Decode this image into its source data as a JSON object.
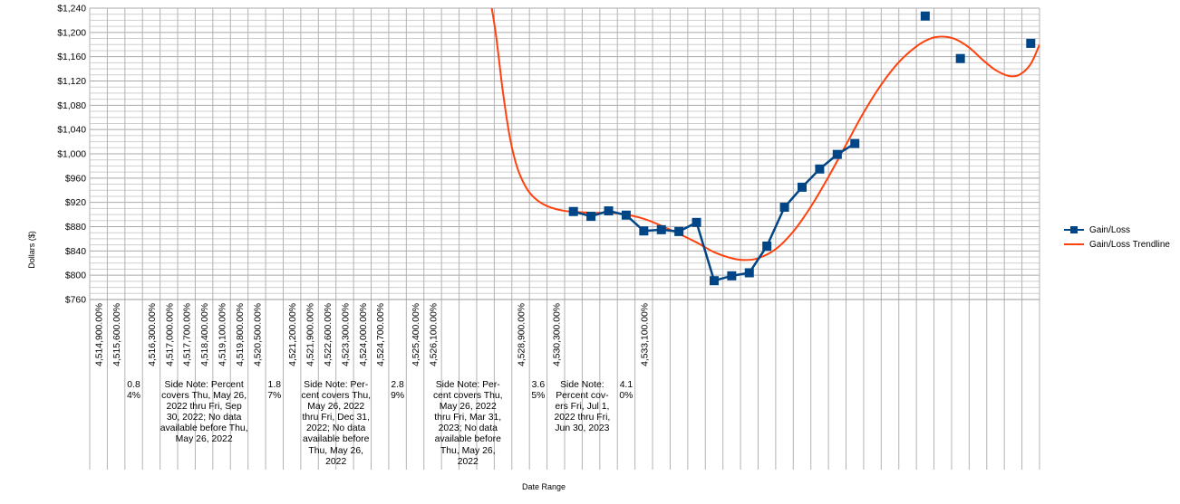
{
  "chart_data": {
    "type": "line",
    "ylabel": "Dollars ($)",
    "xlabel": "Date Range",
    "ylim": [
      760,
      1240
    ],
    "y_tick_step": 40,
    "grid": true,
    "legend_position": "right",
    "categories": [
      "4,514,900.00%",
      "4,515,600.00%",
      "0.84%",
      "4,516,300.00%",
      "4,517,000.00%",
      "4,517,700.00%",
      "4,518,400.00%",
      "4,519,100.00%",
      "4,519,800.00%",
      "4,520,500.00%",
      "1.87%",
      "4,521,200.00%",
      "4,521,900.00%",
      "4,522,600.00%",
      "4,523,300.00%",
      "4,524,000.00%",
      "4,524,700.00%",
      "2.89%",
      "4,525,400.00%",
      "4,526,100.00%",
      "",
      "",
      "",
      "",
      "4,528,900.00%",
      "3.65%",
      "4,530,300.00%",
      "",
      "",
      "",
      "4.10%",
      "4,533,100.00%",
      "",
      "",
      "",
      "",
      "",
      "",
      "",
      "",
      "",
      "",
      "",
      "",
      "",
      "",
      "",
      "",
      "",
      "",
      "",
      "",
      "",
      "",
      "",
      ""
    ],
    "rotated_tick_labels": [
      {
        "text": "4,514,900.00%",
        "col": 0
      },
      {
        "text": "4,515,600.00%",
        "col": 1
      },
      {
        "text": "4,516,300.00%",
        "col": 3
      },
      {
        "text": "4,517,000.00%",
        "col": 4
      },
      {
        "text": "4,517,700.00%",
        "col": 5
      },
      {
        "text": "4,518,400.00%",
        "col": 6
      },
      {
        "text": "4,519,100.00%",
        "col": 7
      },
      {
        "text": "4,519,800.00%",
        "col": 8
      },
      {
        "text": "4,520,500.00%",
        "col": 9
      },
      {
        "text": "4,521,200.00%",
        "col": 11
      },
      {
        "text": "4,521,900.00%",
        "col": 12
      },
      {
        "text": "4,522,600.00%",
        "col": 13
      },
      {
        "text": "4,523,300.00%",
        "col": 14
      },
      {
        "text": "4,524,000.00%",
        "col": 15
      },
      {
        "text": "4,524,700.00%",
        "col": 16
      },
      {
        "text": "4,525,400.00%",
        "col": 18
      },
      {
        "text": "4,526,100.00%",
        "col": 19
      },
      {
        "text": "4,528,900.00%",
        "col": 24
      },
      {
        "text": "4,530,300.00%",
        "col": 26
      },
      {
        "text": "4,533,100.00%",
        "col": 31
      }
    ],
    "small_percent_labels": [
      {
        "lines": [
          "0.8",
          "4%"
        ],
        "col": 2
      },
      {
        "lines": [
          "1.8",
          "7%"
        ],
        "col": 10
      },
      {
        "lines": [
          "2.8",
          "9%"
        ],
        "col": 17
      },
      {
        "lines": [
          "3.6",
          "5%"
        ],
        "col": 25
      },
      {
        "lines": [
          "4.1",
          "0%"
        ],
        "col": 30
      }
    ],
    "side_notes": [
      {
        "lines": [
          "Side Note: Percent",
          "covers Thu, May 26,",
          "2022 thru Fri, Sep",
          "30, 2022; No data",
          "available before Thu,",
          "May 26, 2022"
        ],
        "col_start": 3,
        "col_end": 9
      },
      {
        "lines": [
          "Side Note: Per-",
          "cent covers Thu,",
          "May 26, 2022",
          "thru Fri, Dec 31,",
          "2022; No data",
          "available before",
          "Thu, May 26,",
          "2022"
        ],
        "col_start": 11,
        "col_end": 16
      },
      {
        "lines": [
          "Side Note: Per-",
          "cent covers Thu,",
          "May 26, 2022",
          "thru Fri, Mar 31,",
          "2023; No data",
          "available before",
          "Thu, May 26,",
          "2022"
        ],
        "col_start": 18,
        "col_end": 24
      },
      {
        "lines": [
          "Side Note:",
          "Percent cov-",
          "ers Fri, Jul 1,",
          "2022 thru Fri,",
          "Jun 30, 2023"
        ],
        "col_start": 26,
        "col_end": 29
      }
    ],
    "series": [
      {
        "name": "Gain/Loss",
        "color": "#004586",
        "points": [
          {
            "col": 27,
            "y": 905
          },
          {
            "col": 28,
            "y": 897
          },
          {
            "col": 29,
            "y": 906
          },
          {
            "col": 30,
            "y": 899
          },
          {
            "col": 31,
            "y": 873
          },
          {
            "col": 32,
            "y": 875
          },
          {
            "col": 33,
            "y": 872
          },
          {
            "col": 34,
            "y": 887
          },
          {
            "col": 35,
            "y": 791
          },
          {
            "col": 36,
            "y": 799
          },
          {
            "col": 37,
            "y": 804
          },
          {
            "col": 38,
            "y": 848
          },
          {
            "col": 39,
            "y": 912
          },
          {
            "col": 40,
            "y": 945
          },
          {
            "col": 41,
            "y": 975
          },
          {
            "col": 42,
            "y": 999
          },
          {
            "col": 43,
            "y": 1017
          },
          {
            "col": 47,
            "y": 1227
          },
          {
            "col": 49,
            "y": 1157
          },
          {
            "col": 53,
            "y": 1182
          }
        ],
        "connected_until": 43
      },
      {
        "name": "Gain/Loss Trendline",
        "color": "#ff420e",
        "points": [
          {
            "col": 22.3,
            "y": 1250
          },
          {
            "col": 22.6,
            "y": 1195
          },
          {
            "col": 23.0,
            "y": 1100
          },
          {
            "col": 23.4,
            "y": 1025
          },
          {
            "col": 23.8,
            "y": 978
          },
          {
            "col": 24.3,
            "y": 945
          },
          {
            "col": 24.8,
            "y": 927
          },
          {
            "col": 25.5,
            "y": 914
          },
          {
            "col": 26.5,
            "y": 906
          },
          {
            "col": 28.0,
            "y": 903
          },
          {
            "col": 29.5,
            "y": 902
          },
          {
            "col": 31.0,
            "y": 893
          },
          {
            "col": 32.5,
            "y": 875
          },
          {
            "col": 34.0,
            "y": 854
          },
          {
            "col": 35.0,
            "y": 838
          },
          {
            "col": 36.0,
            "y": 828
          },
          {
            "col": 36.7,
            "y": 825
          },
          {
            "col": 37.5,
            "y": 828
          },
          {
            "col": 38.5,
            "y": 843
          },
          {
            "col": 39.5,
            "y": 872
          },
          {
            "col": 40.5,
            "y": 913
          },
          {
            "col": 41.5,
            "y": 962
          },
          {
            "col": 42.5,
            "y": 1015
          },
          {
            "col": 43.5,
            "y": 1068
          },
          {
            "col": 44.5,
            "y": 1114
          },
          {
            "col": 45.5,
            "y": 1151
          },
          {
            "col": 46.5,
            "y": 1177
          },
          {
            "col": 47.3,
            "y": 1190
          },
          {
            "col": 48.0,
            "y": 1193
          },
          {
            "col": 48.7,
            "y": 1189
          },
          {
            "col": 49.5,
            "y": 1175
          },
          {
            "col": 50.3,
            "y": 1154
          },
          {
            "col": 51.0,
            "y": 1138
          },
          {
            "col": 51.8,
            "y": 1128
          },
          {
            "col": 52.4,
            "y": 1131
          },
          {
            "col": 53.0,
            "y": 1148
          },
          {
            "col": 53.5,
            "y": 1180
          }
        ]
      }
    ]
  }
}
